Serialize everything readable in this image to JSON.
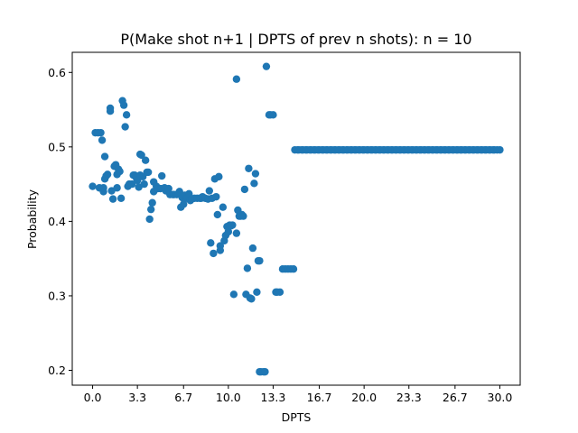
{
  "chart_data": {
    "type": "scatter",
    "title": "P(Make shot n+1 | DPTS of prev n shots): n = 10",
    "xlabel": "DPTS",
    "ylabel": "Probability",
    "xlim": [
      -1.5,
      31.5
    ],
    "ylim": [
      0.18,
      0.627
    ],
    "x_ticks": [
      0.0,
      3.3,
      6.7,
      10.0,
      13.3,
      16.7,
      20.0,
      23.3,
      26.7,
      30.0
    ],
    "x_tick_labels": [
      "0.0",
      "3.3",
      "6.7",
      "10.0",
      "13.3",
      "16.7",
      "20.0",
      "23.3",
      "26.7",
      "30.0"
    ],
    "y_ticks": [
      0.2,
      0.3,
      0.4,
      0.5,
      0.6
    ],
    "y_tick_labels": [
      "0.2",
      "0.3",
      "0.4",
      "0.5",
      "0.6"
    ],
    "grid": false,
    "marker_color": "#1f77b4",
    "points": [
      [
        0.0,
        0.447
      ],
      [
        0.2,
        0.519
      ],
      [
        0.4,
        0.519
      ],
      [
        0.5,
        0.445
      ],
      [
        0.6,
        0.519
      ],
      [
        0.7,
        0.509
      ],
      [
        0.8,
        0.44
      ],
      [
        0.8,
        0.445
      ],
      [
        0.9,
        0.457
      ],
      [
        0.9,
        0.487
      ],
      [
        1.0,
        0.461
      ],
      [
        1.1,
        0.463
      ],
      [
        1.3,
        0.552
      ],
      [
        1.3,
        0.548
      ],
      [
        1.4,
        0.441
      ],
      [
        1.5,
        0.43
      ],
      [
        1.6,
        0.474
      ],
      [
        1.7,
        0.476
      ],
      [
        1.8,
        0.463
      ],
      [
        1.8,
        0.445
      ],
      [
        1.9,
        0.47
      ],
      [
        2.0,
        0.467
      ],
      [
        2.1,
        0.431
      ],
      [
        2.2,
        0.562
      ],
      [
        2.3,
        0.556
      ],
      [
        2.4,
        0.527
      ],
      [
        2.5,
        0.543
      ],
      [
        2.6,
        0.447
      ],
      [
        2.7,
        0.45
      ],
      [
        2.9,
        0.45
      ],
      [
        3.0,
        0.462
      ],
      [
        3.1,
        0.462
      ],
      [
        3.2,
        0.459
      ],
      [
        3.3,
        0.455
      ],
      [
        3.4,
        0.446
      ],
      [
        3.5,
        0.462
      ],
      [
        3.5,
        0.49
      ],
      [
        3.6,
        0.489
      ],
      [
        3.7,
        0.46
      ],
      [
        3.8,
        0.45
      ],
      [
        3.9,
        0.482
      ],
      [
        4.0,
        0.466
      ],
      [
        4.1,
        0.466
      ],
      [
        4.2,
        0.403
      ],
      [
        4.3,
        0.416
      ],
      [
        4.4,
        0.425
      ],
      [
        4.5,
        0.44
      ],
      [
        4.5,
        0.453
      ],
      [
        4.7,
        0.447
      ],
      [
        4.8,
        0.444
      ],
      [
        5.0,
        0.444
      ],
      [
        5.1,
        0.461
      ],
      [
        5.3,
        0.445
      ],
      [
        5.4,
        0.441
      ],
      [
        5.6,
        0.444
      ],
      [
        5.7,
        0.436
      ],
      [
        5.9,
        0.436
      ],
      [
        6.0,
        0.436
      ],
      [
        6.2,
        0.436
      ],
      [
        6.3,
        0.437
      ],
      [
        6.4,
        0.44
      ],
      [
        6.5,
        0.419
      ],
      [
        6.6,
        0.432
      ],
      [
        6.7,
        0.423
      ],
      [
        6.8,
        0.435
      ],
      [
        6.9,
        0.431
      ],
      [
        7.0,
        0.432
      ],
      [
        7.1,
        0.437
      ],
      [
        7.2,
        0.428
      ],
      [
        7.3,
        0.43
      ],
      [
        7.5,
        0.431
      ],
      [
        7.7,
        0.431
      ],
      [
        7.9,
        0.431
      ],
      [
        8.0,
        0.431
      ],
      [
        8.1,
        0.433
      ],
      [
        8.3,
        0.431
      ],
      [
        8.5,
        0.43
      ],
      [
        8.6,
        0.441
      ],
      [
        8.7,
        0.371
      ],
      [
        8.8,
        0.431
      ],
      [
        8.9,
        0.357
      ],
      [
        9.0,
        0.457
      ],
      [
        9.1,
        0.433
      ],
      [
        9.2,
        0.409
      ],
      [
        9.3,
        0.46
      ],
      [
        9.4,
        0.367
      ],
      [
        9.4,
        0.361
      ],
      [
        9.6,
        0.419
      ],
      [
        9.7,
        0.374
      ],
      [
        9.8,
        0.381
      ],
      [
        9.9,
        0.393
      ],
      [
        10.0,
        0.386
      ],
      [
        10.1,
        0.395
      ],
      [
        10.2,
        0.394
      ],
      [
        10.3,
        0.395
      ],
      [
        10.4,
        0.302
      ],
      [
        10.6,
        0.591
      ],
      [
        10.6,
        0.384
      ],
      [
        10.7,
        0.415
      ],
      [
        10.8,
        0.407
      ],
      [
        10.9,
        0.407
      ],
      [
        11.0,
        0.409
      ],
      [
        11.1,
        0.407
      ],
      [
        11.2,
        0.443
      ],
      [
        11.3,
        0.302
      ],
      [
        11.4,
        0.337
      ],
      [
        11.5,
        0.471
      ],
      [
        11.6,
        0.297
      ],
      [
        11.7,
        0.296
      ],
      [
        11.8,
        0.364
      ],
      [
        11.9,
        0.451
      ],
      [
        12.0,
        0.464
      ],
      [
        12.1,
        0.305
      ],
      [
        12.2,
        0.347
      ],
      [
        12.3,
        0.347
      ],
      [
        12.3,
        0.198
      ],
      [
        12.4,
        0.198
      ],
      [
        12.6,
        0.198
      ],
      [
        12.7,
        0.198
      ],
      [
        12.8,
        0.608
      ],
      [
        13.0,
        0.543
      ],
      [
        13.1,
        0.543
      ],
      [
        13.3,
        0.543
      ],
      [
        13.5,
        0.305
      ],
      [
        13.6,
        0.305
      ],
      [
        13.8,
        0.305
      ],
      [
        14.0,
        0.336
      ],
      [
        14.2,
        0.336
      ],
      [
        14.4,
        0.336
      ],
      [
        14.6,
        0.336
      ],
      [
        14.8,
        0.336
      ],
      [
        14.9,
        0.496
      ],
      [
        15.1,
        0.496
      ],
      [
        15.2,
        0.496
      ],
      [
        15.4,
        0.496
      ],
      [
        15.5,
        0.496
      ],
      [
        15.7,
        0.496
      ],
      [
        15.8,
        0.496
      ],
      [
        16.0,
        0.496
      ],
      [
        16.1,
        0.496
      ],
      [
        16.3,
        0.496
      ],
      [
        16.4,
        0.496
      ],
      [
        16.6,
        0.496
      ],
      [
        16.7,
        0.496
      ],
      [
        16.9,
        0.496
      ],
      [
        17.0,
        0.496
      ],
      [
        17.2,
        0.496
      ],
      [
        17.3,
        0.496
      ],
      [
        17.5,
        0.496
      ],
      [
        17.6,
        0.496
      ],
      [
        17.8,
        0.496
      ],
      [
        17.9,
        0.496
      ],
      [
        18.1,
        0.496
      ],
      [
        18.2,
        0.496
      ],
      [
        18.4,
        0.496
      ],
      [
        18.5,
        0.496
      ],
      [
        18.7,
        0.496
      ],
      [
        18.8,
        0.496
      ],
      [
        19.0,
        0.496
      ],
      [
        19.1,
        0.496
      ],
      [
        19.3,
        0.496
      ],
      [
        19.4,
        0.496
      ],
      [
        19.6,
        0.496
      ],
      [
        19.7,
        0.496
      ],
      [
        19.9,
        0.496
      ],
      [
        20.0,
        0.496
      ],
      [
        20.2,
        0.496
      ],
      [
        20.3,
        0.496
      ],
      [
        20.5,
        0.496
      ],
      [
        20.6,
        0.496
      ],
      [
        20.8,
        0.496
      ],
      [
        20.9,
        0.496
      ],
      [
        21.1,
        0.496
      ],
      [
        21.2,
        0.496
      ],
      [
        21.4,
        0.496
      ],
      [
        21.5,
        0.496
      ],
      [
        21.7,
        0.496
      ],
      [
        21.8,
        0.496
      ],
      [
        22.0,
        0.496
      ],
      [
        22.1,
        0.496
      ],
      [
        22.3,
        0.496
      ],
      [
        22.4,
        0.496
      ],
      [
        22.6,
        0.496
      ],
      [
        22.7,
        0.496
      ],
      [
        22.9,
        0.496
      ],
      [
        23.0,
        0.496
      ],
      [
        23.2,
        0.496
      ],
      [
        23.3,
        0.496
      ],
      [
        23.5,
        0.496
      ],
      [
        23.6,
        0.496
      ],
      [
        23.8,
        0.496
      ],
      [
        23.9,
        0.496
      ],
      [
        24.1,
        0.496
      ],
      [
        24.2,
        0.496
      ],
      [
        24.4,
        0.496
      ],
      [
        24.5,
        0.496
      ],
      [
        24.7,
        0.496
      ],
      [
        24.8,
        0.496
      ],
      [
        25.0,
        0.496
      ],
      [
        25.1,
        0.496
      ],
      [
        25.3,
        0.496
      ],
      [
        25.4,
        0.496
      ],
      [
        25.6,
        0.496
      ],
      [
        25.7,
        0.496
      ],
      [
        25.9,
        0.496
      ],
      [
        26.0,
        0.496
      ],
      [
        26.2,
        0.496
      ],
      [
        26.3,
        0.496
      ],
      [
        26.5,
        0.496
      ],
      [
        26.6,
        0.496
      ],
      [
        26.8,
        0.496
      ],
      [
        26.9,
        0.496
      ],
      [
        27.1,
        0.496
      ],
      [
        27.2,
        0.496
      ],
      [
        27.4,
        0.496
      ],
      [
        27.5,
        0.496
      ],
      [
        27.7,
        0.496
      ],
      [
        27.8,
        0.496
      ],
      [
        28.0,
        0.496
      ],
      [
        28.1,
        0.496
      ],
      [
        28.3,
        0.496
      ],
      [
        28.4,
        0.496
      ],
      [
        28.6,
        0.496
      ],
      [
        28.7,
        0.496
      ],
      [
        28.9,
        0.496
      ],
      [
        29.0,
        0.496
      ],
      [
        29.2,
        0.496
      ],
      [
        29.3,
        0.496
      ],
      [
        29.5,
        0.496
      ],
      [
        29.6,
        0.496
      ],
      [
        29.8,
        0.496
      ],
      [
        30.0,
        0.496
      ]
    ]
  }
}
